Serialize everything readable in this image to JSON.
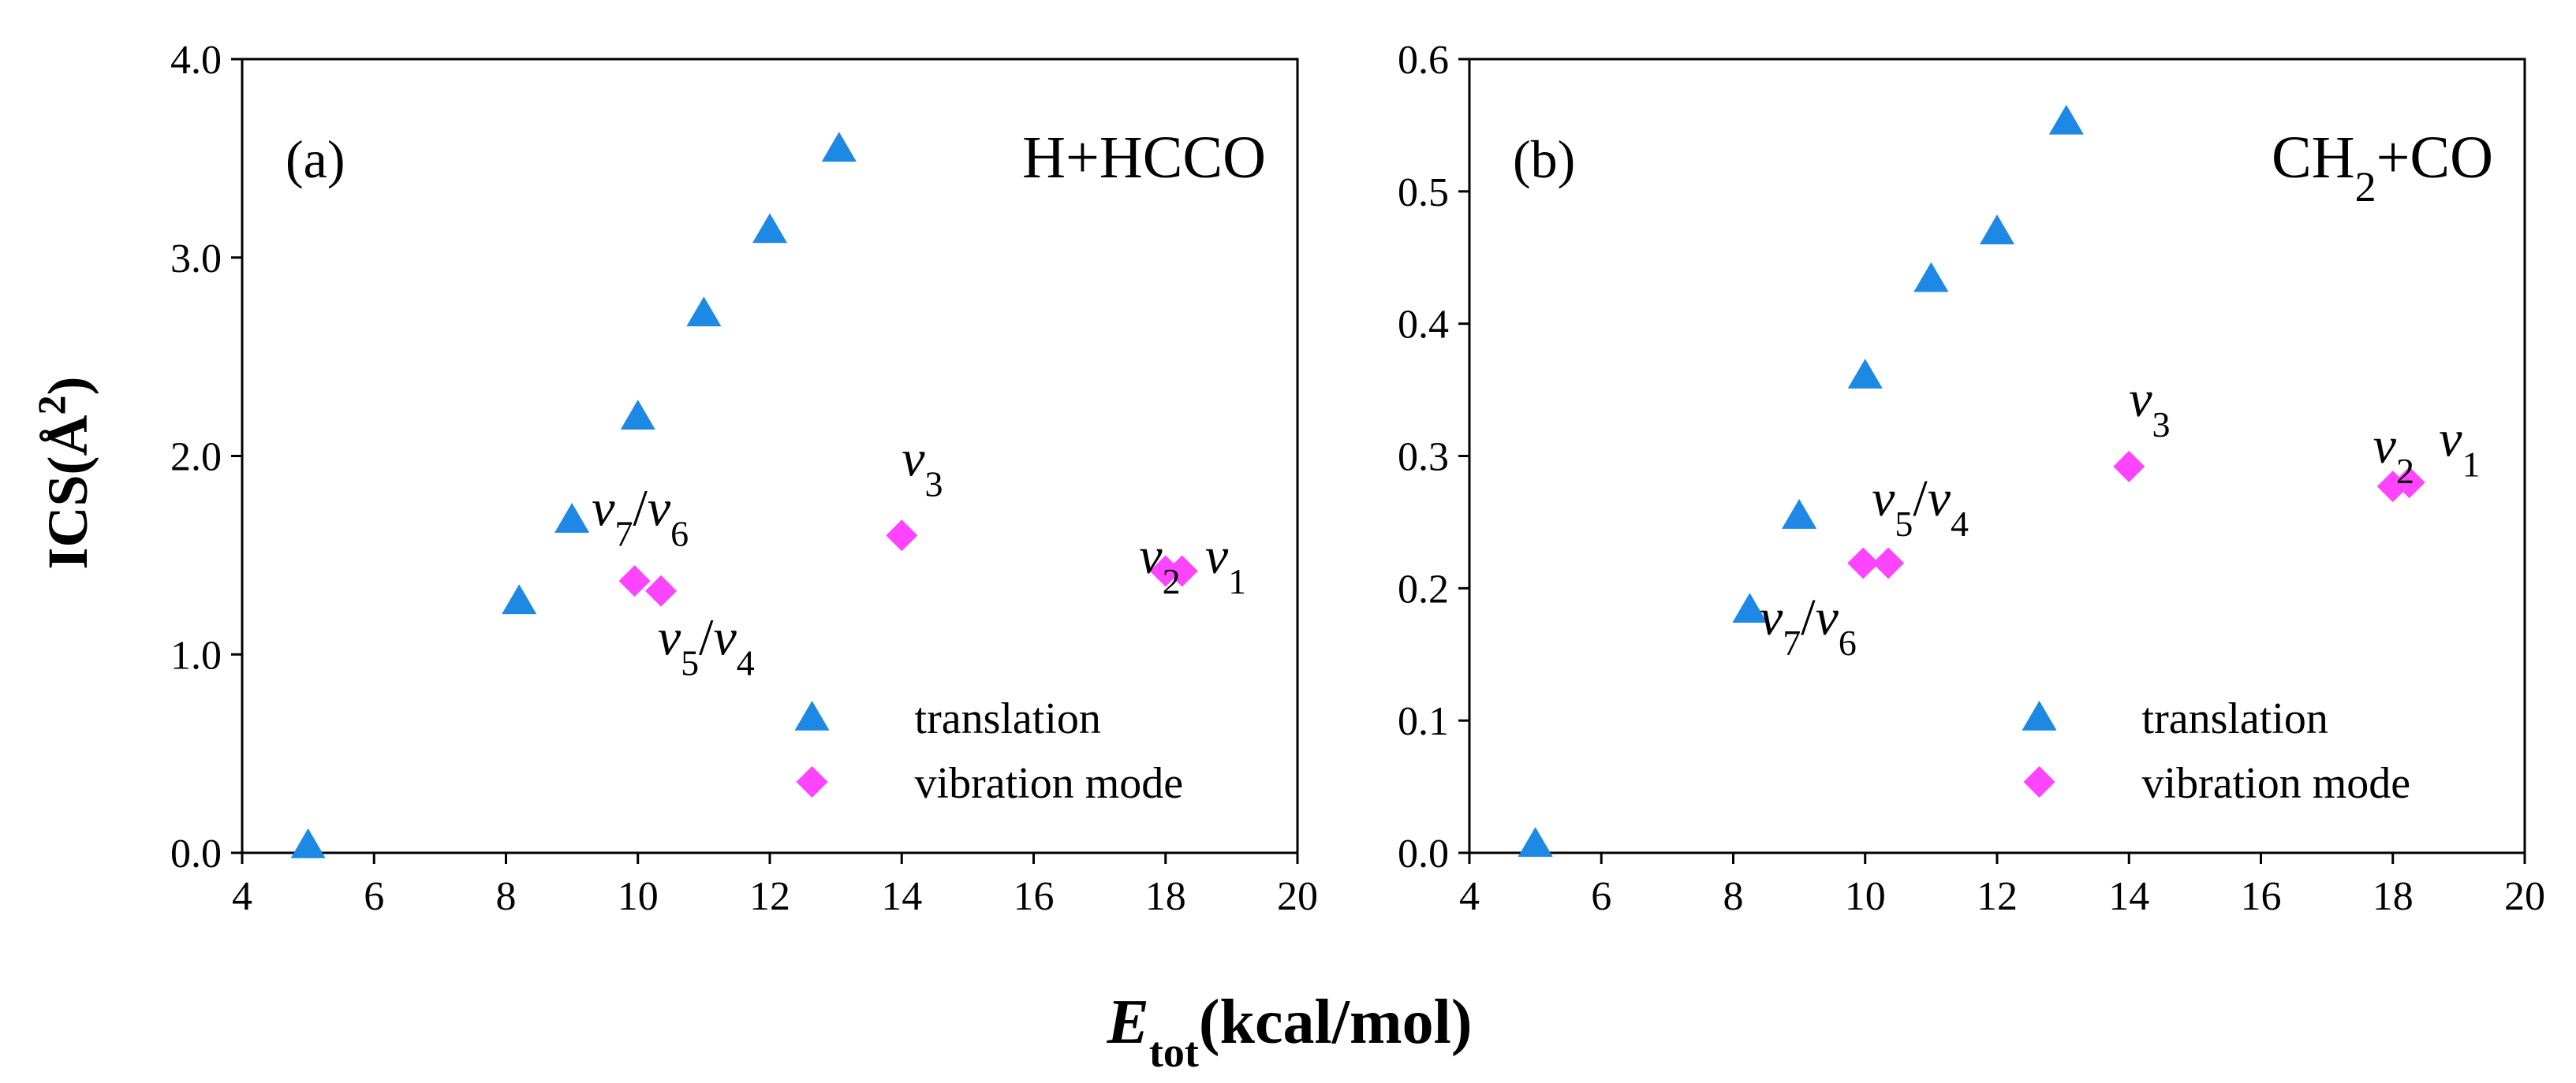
{
  "chart_data": [
    {
      "type": "scatter",
      "panel_label": "(a)",
      "title": "H+HCCO",
      "xlim": [
        4,
        20
      ],
      "ylim": [
        0,
        4.0
      ],
      "xticks": [
        "4",
        "6",
        "8",
        "10",
        "12",
        "14",
        "16",
        "18",
        "20"
      ],
      "yticks": [
        "0.0",
        "1.0",
        "2.0",
        "3.0",
        "4.0"
      ],
      "grid": false,
      "legend_position": "bottom-right",
      "series": [
        {
          "name": "translation",
          "marker": "triangle",
          "color": "#1e88e5",
          "points": [
            [
              5,
              0.04
            ],
            [
              8.2,
              1.27
            ],
            [
              9,
              1.68
            ],
            [
              10,
              2.2
            ],
            [
              11,
              2.72
            ],
            [
              12,
              3.14
            ],
            [
              13.05,
              3.55
            ]
          ]
        },
        {
          "name": "vibration mode",
          "marker": "diamond",
          "color": "#ff44ff",
          "points": [
            [
              9.95,
              1.37
            ],
            [
              10.35,
              1.32
            ],
            [
              14,
              1.6
            ],
            [
              18,
              1.42
            ],
            [
              18.25,
              1.42
            ]
          ]
        }
      ],
      "annotations": [
        {
          "parts": [
            [
              "v",
              "7"
            ],
            [
              "/",
              ""
            ],
            [
              "v",
              "6"
            ]
          ],
          "x": 9.3,
          "y": 1.65
        },
        {
          "parts": [
            [
              "v",
              "5"
            ],
            [
              "/",
              ""
            ],
            [
              "v",
              "4"
            ]
          ],
          "x": 10.3,
          "y": 1.0
        },
        {
          "parts": [
            [
              "v",
              "3"
            ]
          ],
          "x": 14,
          "y": 1.9
        },
        {
          "parts": [
            [
              "v",
              "2"
            ]
          ],
          "x": 17.6,
          "y": 1.41
        },
        {
          "parts": [
            [
              "v",
              "1"
            ]
          ],
          "x": 18.6,
          "y": 1.41
        }
      ]
    },
    {
      "type": "scatter",
      "panel_label": "(b)",
      "title": "CH2+CO",
      "xlim": [
        4,
        20
      ],
      "ylim": [
        0,
        0.6
      ],
      "xticks": [
        "4",
        "6",
        "8",
        "10",
        "12",
        "14",
        "16",
        "18",
        "20"
      ],
      "yticks": [
        "0.0",
        "0.1",
        "0.2",
        "0.3",
        "0.4",
        "0.5",
        "0.6"
      ],
      "grid": false,
      "legend_position": "bottom-right",
      "series": [
        {
          "name": "translation",
          "marker": "triangle",
          "color": "#1e88e5",
          "points": [
            [
              5,
              0.007
            ],
            [
              8.25,
              0.184
            ],
            [
              9,
              0.255
            ],
            [
              10,
              0.361
            ],
            [
              11,
              0.434
            ],
            [
              12,
              0.47
            ],
            [
              13.05,
              0.553
            ]
          ]
        },
        {
          "name": "vibration mode",
          "marker": "diamond",
          "color": "#ff44ff",
          "points": [
            [
              9.97,
              0.219
            ],
            [
              10.35,
              0.219
            ],
            [
              14,
              0.292
            ],
            [
              18,
              0.277
            ],
            [
              18.25,
              0.28
            ]
          ]
        }
      ],
      "annotations": [
        {
          "parts": [
            [
              "v",
              "7"
            ],
            [
              "/",
              ""
            ],
            [
              "v",
              "6"
            ]
          ],
          "x": 8.4,
          "y": 0.165
        },
        {
          "parts": [
            [
              "v",
              "5"
            ],
            [
              "/",
              ""
            ],
            [
              "v",
              "4"
            ]
          ],
          "x": 10.1,
          "y": 0.255
        },
        {
          "parts": [
            [
              "v",
              "3"
            ]
          ],
          "x": 14,
          "y": 0.33
        },
        {
          "parts": [
            [
              "v",
              "2"
            ]
          ],
          "x": 17.7,
          "y": 0.295
        },
        {
          "parts": [
            [
              "v",
              "1"
            ]
          ],
          "x": 18.7,
          "y": 0.3
        }
      ]
    }
  ],
  "ylabel": "ICS(Å2)",
  "xlabel": "Etot(kcal/mol)"
}
